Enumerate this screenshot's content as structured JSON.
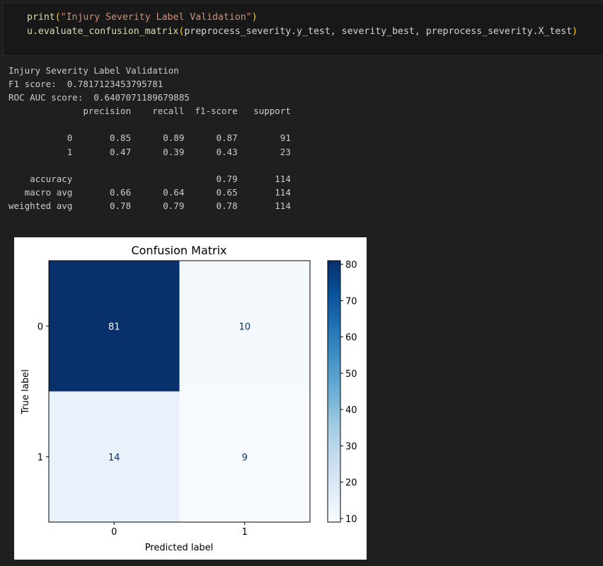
{
  "code": {
    "line1": {
      "fn": "print",
      "open": "(",
      "arg": "\"Injury Severity Label Validation\"",
      "close": ")"
    },
    "line2": {
      "call": "u.evaluate_confusion_matrix",
      "open": "(",
      "args": "preprocess_severity.y_test, severity_best, preprocess_severity.X_test",
      "close": ")"
    }
  },
  "output": {
    "lines": [
      "Injury Severity Label Validation",
      "F1 score:  0.7817123453795781",
      "ROC AUC score:  0.6407071189679885",
      "              precision    recall  f1-score   support",
      "",
      "           0       0.85      0.89      0.87        91",
      "           1       0.47      0.39      0.43        23",
      "",
      "    accuracy                           0.79       114",
      "   macro avg       0.66      0.64      0.65       114",
      "weighted avg       0.78      0.79      0.78       114"
    ]
  },
  "chart_data": {
    "type": "heatmap",
    "title": "Confusion Matrix",
    "xlabel": "Predicted label",
    "ylabel": "True label",
    "x_categories": [
      "0",
      "1"
    ],
    "y_categories": [
      "0",
      "1"
    ],
    "matrix": [
      [
        81,
        10
      ],
      [
        14,
        9
      ]
    ],
    "colormap": "Blues",
    "colorbar_range": [
      9,
      81
    ],
    "colorbar_ticks": [
      10,
      20,
      30,
      40,
      50,
      60,
      70,
      80
    ],
    "colors": {
      "high": "#08306b",
      "low": "#f7fbff",
      "text_on_dark": "#f7fbff",
      "text_on_light": "#08306b"
    }
  }
}
